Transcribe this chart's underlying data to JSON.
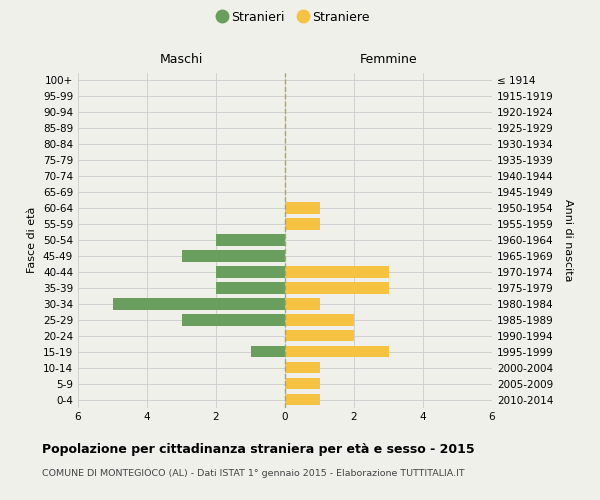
{
  "age_groups": [
    "100+",
    "95-99",
    "90-94",
    "85-89",
    "80-84",
    "75-79",
    "70-74",
    "65-69",
    "60-64",
    "55-59",
    "50-54",
    "45-49",
    "40-44",
    "35-39",
    "30-34",
    "25-29",
    "20-24",
    "15-19",
    "10-14",
    "5-9",
    "0-4"
  ],
  "birth_years": [
    "≤ 1914",
    "1915-1919",
    "1920-1924",
    "1925-1929",
    "1930-1934",
    "1935-1939",
    "1940-1944",
    "1945-1949",
    "1950-1954",
    "1955-1959",
    "1960-1964",
    "1965-1969",
    "1970-1974",
    "1975-1979",
    "1980-1984",
    "1985-1989",
    "1990-1994",
    "1995-1999",
    "2000-2004",
    "2005-2009",
    "2010-2014"
  ],
  "maschi": [
    0,
    0,
    0,
    0,
    0,
    0,
    0,
    0,
    0,
    0,
    2,
    3,
    2,
    2,
    5,
    3,
    0,
    1,
    0,
    0,
    0
  ],
  "femmine": [
    0,
    0,
    0,
    0,
    0,
    0,
    0,
    0,
    1,
    1,
    0,
    0,
    3,
    3,
    1,
    2,
    2,
    3,
    1,
    1,
    1
  ],
  "color_maschi": "#6a9e5e",
  "color_femmine": "#f5c242",
  "background_color": "#f0f0eb",
  "grid_color": "#cccccc",
  "title": "Popolazione per cittadinanza straniera per età e sesso - 2015",
  "subtitle": "COMUNE DI MONTEGIOCO (AL) - Dati ISTAT 1° gennaio 2015 - Elaborazione TUTTITALIA.IT",
  "ylabel_left": "Fasce di età",
  "ylabel_right": "Anni di nascita",
  "label_maschi": "Maschi",
  "label_femmine": "Femmine",
  "legend_stranieri": "Stranieri",
  "legend_straniere": "Straniere",
  "xlim": 6
}
